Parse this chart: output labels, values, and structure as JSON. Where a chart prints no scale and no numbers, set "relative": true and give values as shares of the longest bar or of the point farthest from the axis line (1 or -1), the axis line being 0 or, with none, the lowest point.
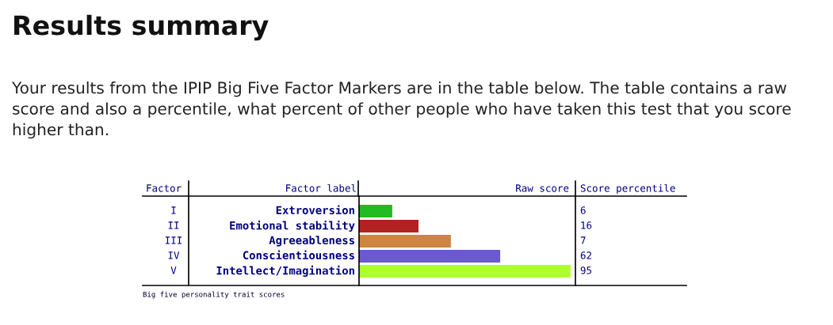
{
  "chart_data": {
    "type": "bar",
    "orientation": "horizontal",
    "relative": true,
    "title": "Results summary",
    "subtitle": "Your results from the IPIP Big Five Factor Markers are in the table below. The table contains a raw score and also a percentile, what percent of other people who have taken this test that you score higher than.",
    "ylabel": "Factor label",
    "xlabel": "Raw score",
    "categories": [
      "Extroversion",
      "Emotional stability",
      "Agreeableness",
      "Conscientiousness",
      "Intellect/Imagination"
    ],
    "values": [
      0.157,
      0.281,
      0.434,
      0.667,
      1
    ],
    "colors": [
      "#22bb22",
      "#b22222",
      "#cd853f",
      "#6a5acd",
      "#adff2f"
    ],
    "annotations": [
      "Factor",
      "Score percentile",
      "I",
      "II",
      "III",
      "IV",
      "V",
      "6",
      "16",
      "7",
      "62",
      "95",
      "Big five personality trait scores"
    ],
    "legend": false
  }
}
